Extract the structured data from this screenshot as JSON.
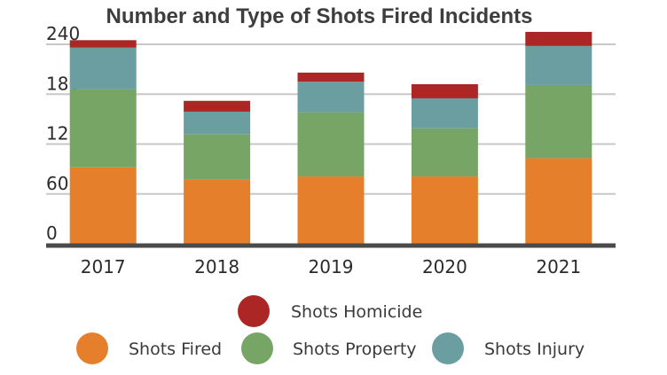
{
  "chart_data": {
    "type": "bar",
    "stacked": true,
    "title": "Number and Type of Shots Fired Incidents",
    "categories": [
      "2017",
      "2018",
      "2019",
      "2020",
      "2021"
    ],
    "ylim": [
      0,
      240
    ],
    "yticks": [
      0,
      60,
      120,
      180,
      240
    ],
    "grid": true,
    "legend_position": "bottom",
    "series": [
      {
        "name": "Shots Fired",
        "color": "#e57f2b",
        "values": [
          92,
          77,
          81,
          81,
          103
        ]
      },
      {
        "name": "Shots Property",
        "color": "#77a565",
        "values": [
          94,
          55,
          77,
          58,
          88
        ]
      },
      {
        "name": "Shots Injury",
        "color": "#6a9ea1",
        "values": [
          50,
          27,
          37,
          36,
          47
        ]
      },
      {
        "name": "Shots Homicide",
        "color": "#ab2624",
        "values": [
          9,
          13,
          11,
          17,
          17
        ]
      }
    ]
  }
}
